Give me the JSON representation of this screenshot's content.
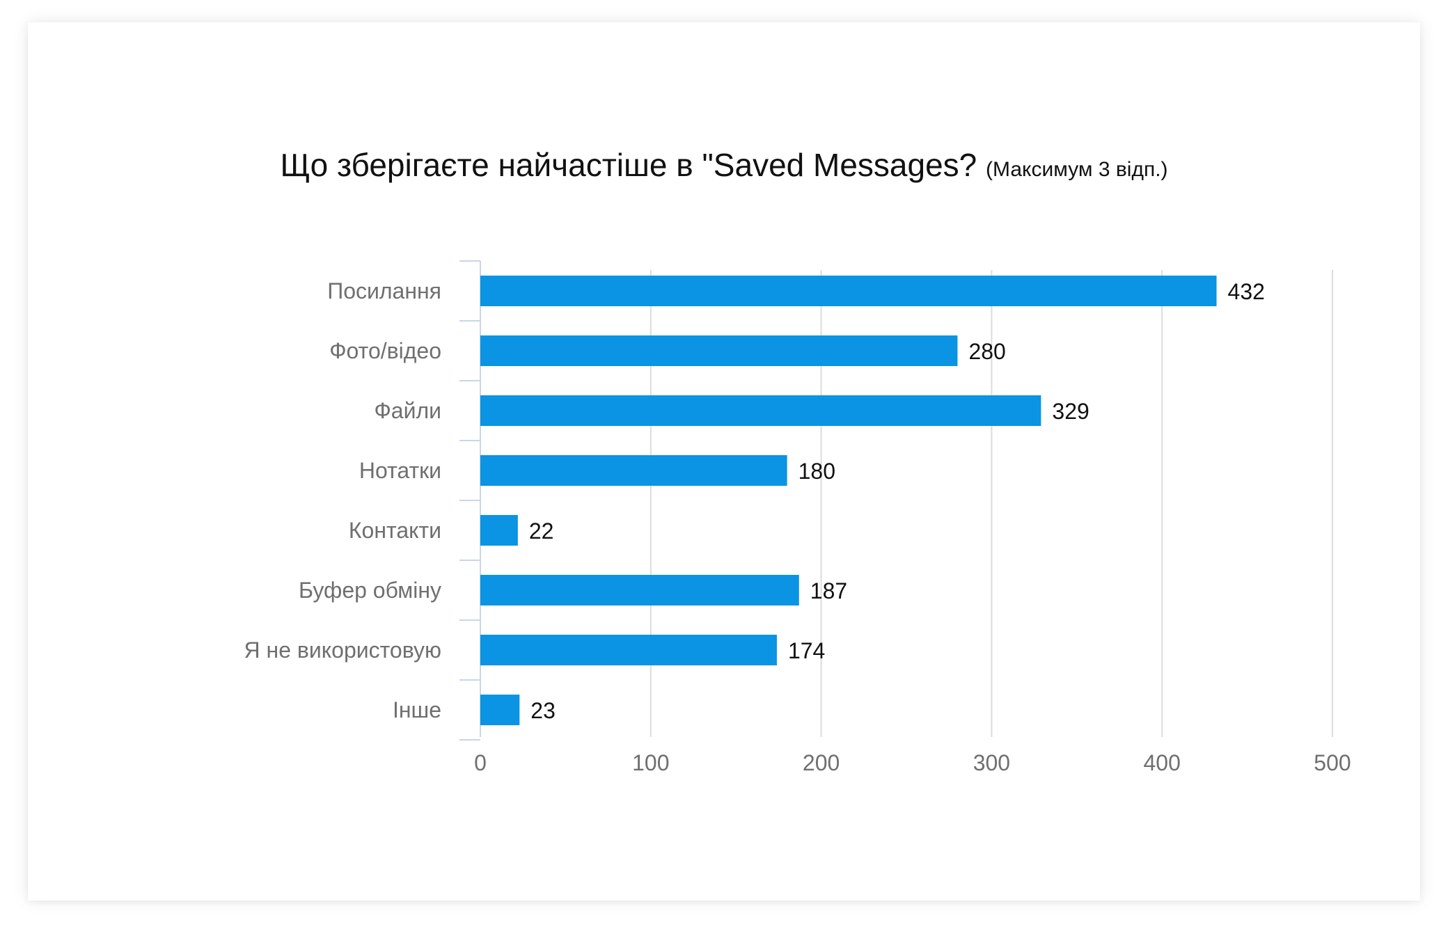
{
  "chart_data": {
    "type": "bar",
    "orientation": "horizontal",
    "title": "Що зберігаєте найчастіше в \"Saved Messages?",
    "subtitle": "(Максимум 3 відп.)",
    "categories": [
      "Посилання",
      "Фото/відео",
      "Файли",
      "Нотатки",
      "Контакти",
      "Буфер обміну",
      "Я не використовую",
      "Інше"
    ],
    "values": [
      432,
      280,
      329,
      180,
      22,
      187,
      174,
      23
    ],
    "xlim": [
      0,
      500
    ],
    "xticks": [
      "0",
      "100",
      "200",
      "300",
      "400",
      "500"
    ],
    "xlabel": "",
    "ylabel": "",
    "grid": true,
    "legend": "none",
    "bar_color": "#0a94e3"
  }
}
